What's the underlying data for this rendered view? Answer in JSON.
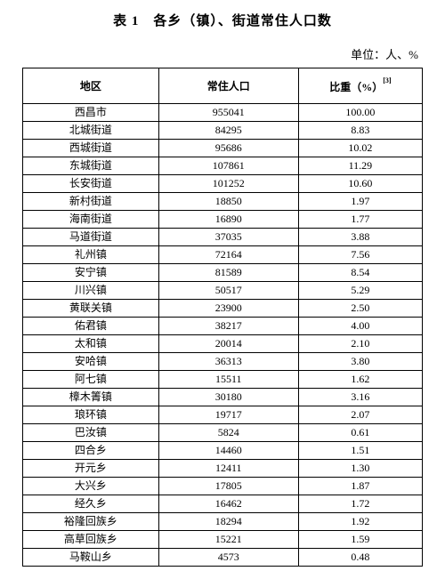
{
  "title": "表 1　各乡（镇）、街道常住人口数",
  "unit_label": "单位：人、%",
  "columns": {
    "region": "地区",
    "population": "常住人口",
    "percent": "比重（%）",
    "footnote": "[3]"
  },
  "rows": [
    {
      "region": "西昌市",
      "pop": "955041",
      "pct": "100.00"
    },
    {
      "region": "北城街道",
      "pop": "84295",
      "pct": "8.83"
    },
    {
      "region": "西城街道",
      "pop": "95686",
      "pct": "10.02"
    },
    {
      "region": "东城街道",
      "pop": "107861",
      "pct": "11.29"
    },
    {
      "region": "长安街道",
      "pop": "101252",
      "pct": "10.60"
    },
    {
      "region": "新村街道",
      "pop": "18850",
      "pct": "1.97"
    },
    {
      "region": "海南街道",
      "pop": "16890",
      "pct": "1.77"
    },
    {
      "region": "马道街道",
      "pop": "37035",
      "pct": "3.88"
    },
    {
      "region": "礼州镇",
      "pop": "72164",
      "pct": "7.56"
    },
    {
      "region": "安宁镇",
      "pop": "81589",
      "pct": "8.54"
    },
    {
      "region": "川兴镇",
      "pop": "50517",
      "pct": "5.29"
    },
    {
      "region": "黄联关镇",
      "pop": "23900",
      "pct": "2.50"
    },
    {
      "region": "佑君镇",
      "pop": "38217",
      "pct": "4.00"
    },
    {
      "region": "太和镇",
      "pop": "20014",
      "pct": "2.10"
    },
    {
      "region": "安哈镇",
      "pop": "36313",
      "pct": "3.80"
    },
    {
      "region": "阿七镇",
      "pop": "15511",
      "pct": "1.62"
    },
    {
      "region": "樟木箐镇",
      "pop": "30180",
      "pct": "3.16"
    },
    {
      "region": "琅环镇",
      "pop": "19717",
      "pct": "2.07"
    },
    {
      "region": "巴汝镇",
      "pop": "5824",
      "pct": "0.61"
    },
    {
      "region": "四合乡",
      "pop": "14460",
      "pct": "1.51"
    },
    {
      "region": "开元乡",
      "pop": "12411",
      "pct": "1.30"
    },
    {
      "region": "大兴乡",
      "pop": "17805",
      "pct": "1.87"
    },
    {
      "region": "经久乡",
      "pop": "16462",
      "pct": "1.72"
    },
    {
      "region": "裕隆回族乡",
      "pop": "18294",
      "pct": "1.92"
    },
    {
      "region": "高草回族乡",
      "pop": "15221",
      "pct": "1.59"
    },
    {
      "region": "马鞍山乡",
      "pop": "4573",
      "pct": "0.48"
    }
  ]
}
